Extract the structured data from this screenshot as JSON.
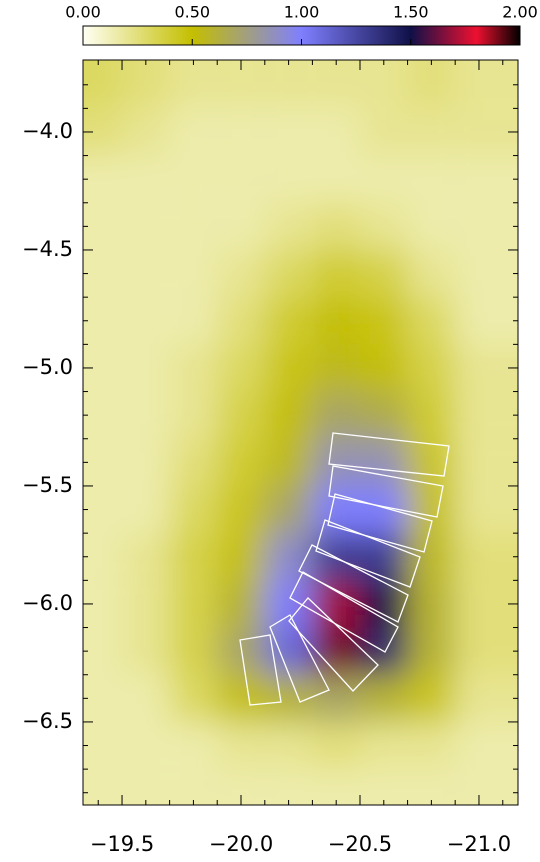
{
  "chart_data": {
    "type": "heatmap",
    "x": [
      -19.4,
      -19.6,
      -19.8,
      -20.0,
      -20.2,
      -20.4,
      -20.6,
      -20.8,
      -21.0
    ],
    "y": [
      -3.8,
      -4.0,
      -4.2,
      -4.4,
      -4.6,
      -4.8,
      -5.0,
      -5.2,
      -5.4,
      -5.6,
      -5.8,
      -6.0,
      -6.2,
      -6.4,
      -6.6,
      -6.8
    ],
    "z": [
      [
        0.3,
        0.25,
        0.2,
        0.2,
        0.2,
        0.2,
        0.2,
        0.25,
        0.2
      ],
      [
        0.25,
        0.2,
        0.15,
        0.15,
        0.15,
        0.15,
        0.2,
        0.2,
        0.2
      ],
      [
        0.15,
        0.15,
        0.15,
        0.15,
        0.15,
        0.15,
        0.15,
        0.15,
        0.15
      ],
      [
        0.15,
        0.15,
        0.15,
        0.15,
        0.2,
        0.25,
        0.2,
        0.15,
        0.15
      ],
      [
        0.15,
        0.15,
        0.15,
        0.2,
        0.3,
        0.4,
        0.35,
        0.2,
        0.15
      ],
      [
        0.15,
        0.15,
        0.15,
        0.25,
        0.4,
        0.5,
        0.45,
        0.3,
        0.15
      ],
      [
        0.15,
        0.15,
        0.2,
        0.3,
        0.45,
        0.55,
        0.5,
        0.35,
        0.2
      ],
      [
        0.15,
        0.15,
        0.2,
        0.35,
        0.5,
        0.7,
        0.65,
        0.4,
        0.2
      ],
      [
        0.15,
        0.15,
        0.25,
        0.4,
        0.55,
        0.85,
        0.85,
        0.45,
        0.2
      ],
      [
        0.15,
        0.15,
        0.3,
        0.45,
        0.7,
        1.0,
        1.0,
        0.5,
        0.2
      ],
      [
        0.15,
        0.2,
        0.35,
        0.5,
        0.9,
        1.3,
        1.3,
        0.55,
        0.25
      ],
      [
        0.15,
        0.2,
        0.35,
        0.6,
        1.0,
        1.7,
        1.5,
        0.6,
        0.25
      ],
      [
        0.15,
        0.2,
        0.35,
        0.7,
        1.1,
        1.9,
        1.4,
        0.6,
        0.25
      ],
      [
        0.15,
        0.15,
        0.3,
        0.5,
        0.6,
        0.7,
        0.6,
        0.45,
        0.2
      ],
      [
        0.15,
        0.15,
        0.15,
        0.2,
        0.2,
        0.25,
        0.2,
        0.2,
        0.15
      ],
      [
        0.15,
        0.15,
        0.15,
        0.15,
        0.15,
        0.15,
        0.15,
        0.15,
        0.15
      ]
    ],
    "xlim": [
      -19.336,
      -21.164
    ],
    "ylim": [
      -6.852,
      -3.695
    ],
    "xticks": [
      {
        "value": -19.5,
        "label": "−19.5"
      },
      {
        "value": -20.0,
        "label": "−20.0"
      },
      {
        "value": -20.5,
        "label": "−20.5"
      },
      {
        "value": -21.0,
        "label": "−21.0"
      }
    ],
    "yticks": [
      {
        "value": -4.0,
        "label": "−4.0"
      },
      {
        "value": -4.5,
        "label": "−4.5"
      },
      {
        "value": -5.0,
        "label": "−5.0"
      },
      {
        "value": -5.5,
        "label": "−5.5"
      },
      {
        "value": -6.0,
        "label": "−6.0"
      },
      {
        "value": -6.5,
        "label": "−6.5"
      }
    ],
    "xminorticks": [
      -19.4,
      -19.6,
      -19.7,
      -19.8,
      -19.9,
      -20.1,
      -20.2,
      -20.3,
      -20.4,
      -20.6,
      -20.7,
      -20.8,
      -20.9,
      -21.1
    ],
    "yminorticks": [
      -3.8,
      -3.9,
      -4.1,
      -4.2,
      -4.3,
      -4.4,
      -4.6,
      -4.7,
      -4.8,
      -4.9,
      -5.1,
      -5.2,
      -5.3,
      -5.4,
      -5.6,
      -5.7,
      -5.8,
      -5.9,
      -6.1,
      -6.2,
      -6.3,
      -6.4,
      -6.6,
      -6.7,
      -6.8
    ],
    "zlim": [
      0,
      2
    ],
    "colorbar_ticks": [
      {
        "value": 0,
        "label": "0.00"
      },
      {
        "value": 0.5,
        "label": "0.50"
      },
      {
        "value": 1.0,
        "label": "1.00"
      },
      {
        "value": 1.5,
        "label": "1.50"
      },
      {
        "value": 2.0,
        "label": "2.00"
      }
    ],
    "colormap": [
      {
        "value": 0,
        "color": "#fffff4"
      },
      {
        "value": 0.5,
        "color": "#c4bf00"
      },
      {
        "value": 1.0,
        "color": "#7f7fff"
      },
      {
        "value": 1.5,
        "color": "#101048"
      },
      {
        "value": 1.8,
        "color": "#ee1030"
      },
      {
        "value": 2.0,
        "color": "#000000"
      }
    ]
  }
}
